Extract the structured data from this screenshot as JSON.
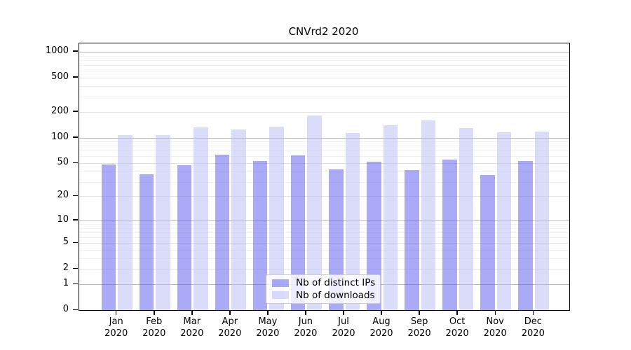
{
  "chart_data": {
    "type": "bar",
    "title": "CNVrd2 2020",
    "categories": [
      "Jan",
      "Feb",
      "Mar",
      "Apr",
      "May",
      "Jun",
      "Jul",
      "Aug",
      "Sep",
      "Oct",
      "Nov",
      "Dec"
    ],
    "category_year": "2020",
    "series": [
      {
        "name": "Nb of distinct IPs",
        "color": "rgba(85,85,240,0.5)",
        "values": [
          48,
          37,
          47,
          63,
          53,
          62,
          42,
          52,
          41,
          55,
          36,
          53
        ]
      },
      {
        "name": "Nb of downloads",
        "color": "rgba(183,183,245,0.5)",
        "values": [
          107,
          107,
          132,
          124,
          134,
          182,
          114,
          138,
          158,
          130,
          115,
          117
        ]
      }
    ],
    "yscale": "log1p",
    "ylim": [
      0,
      1250
    ],
    "yticks": [
      1000,
      500,
      200,
      100,
      50,
      20,
      10,
      5,
      2,
      1,
      0
    ],
    "minor_yticks": [
      3,
      4,
      6,
      7,
      8,
      9,
      30,
      40,
      60,
      70,
      80,
      90,
      300,
      400,
      600,
      700,
      800,
      900
    ],
    "grid": true,
    "legend_position": "lower-center"
  },
  "colors": {
    "grid_major_pow10": "#b9b9b9",
    "grid_major": "#e3e3e3",
    "grid_minor": "#f2f2f2",
    "spine": "#000000",
    "legend_border": "#cccccc"
  }
}
